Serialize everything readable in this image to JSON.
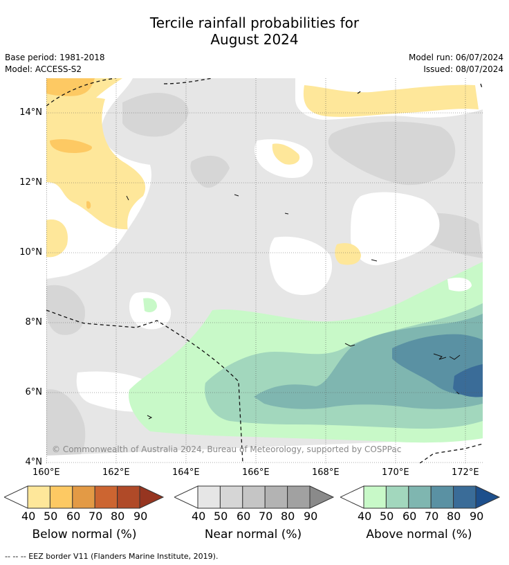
{
  "title": {
    "line1": "Tercile rainfall probabilities for",
    "line2": "August 2024"
  },
  "meta": {
    "base_period": "Base period: 1981-2018",
    "model": "Model: ACCESS-S2",
    "model_run": "Model run: 06/07/2024",
    "issued": "Issued: 08/07/2024"
  },
  "map": {
    "lat_labels": [
      "14°N",
      "12°N",
      "10°N",
      "8°N",
      "6°N",
      "4°N"
    ],
    "lon_labels": [
      "160°E",
      "162°E",
      "164°E",
      "166°E",
      "168°E",
      "170°E",
      "172°E"
    ],
    "copyright": "© Commonwealth of Australia 2024, Bureau of Meteorology, supported by COSPPac"
  },
  "colorbars": [
    {
      "label": "Below normal (%)",
      "ticks": [
        "40",
        "50",
        "60",
        "70",
        "80",
        "90"
      ],
      "colors": [
        "#fee79a",
        "#fdc963",
        "#e39a45",
        "#cc6531",
        "#b04a28",
        "#963520"
      ]
    },
    {
      "label": "Near normal (%)",
      "ticks": [
        "40",
        "50",
        "60",
        "70",
        "80",
        "90"
      ],
      "colors": [
        "#e6e6e6",
        "#d6d6d6",
        "#c5c5c5",
        "#b3b3b3",
        "#a1a1a1",
        "#8a8a8a"
      ]
    },
    {
      "label": "Above normal (%)",
      "ticks": [
        "40",
        "50",
        "60",
        "70",
        "80",
        "90"
      ],
      "colors": [
        "#c8f9c8",
        "#a2d7bd",
        "#7fb6b0",
        "#5a91a3",
        "#3a6c98",
        "#1d4f8c"
      ]
    }
  ],
  "legend": {
    "eez_line": "--  --  -- EEZ border V11 (Flanders Marine Institute, 2019)."
  }
}
